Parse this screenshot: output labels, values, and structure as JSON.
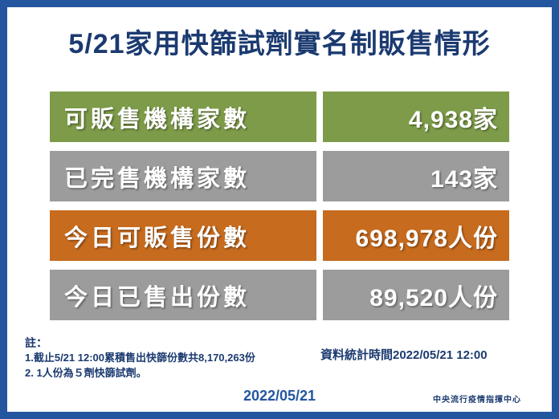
{
  "title": "5/21家用快篩試劑實名制販售情形",
  "chart_data": {
    "type": "table",
    "title": "5/21家用快篩試劑實名制販售情形",
    "rows": [
      {
        "label": "可販售機構家數",
        "value": "4,938家",
        "color": "#7d9b49"
      },
      {
        "label": "已完售機構家數",
        "value": "143家",
        "color": "#9c9c9c"
      },
      {
        "label": "今日可販售份數",
        "value": "698,978人份",
        "color": "#c76b1e"
      },
      {
        "label": "今日已售出份數",
        "value": "89,520人份",
        "color": "#9c9c9c"
      }
    ]
  },
  "notes": {
    "heading": "註：",
    "lines": [
      "1.截止5/21 12:00累積售出快篩份數共8,170,263份",
      "2. 1人份為５劑快篩試劑。"
    ]
  },
  "footer": {
    "stat_time": "資料統計時間2022/05/21 12:00",
    "date": "2022/05/21",
    "org": "中央流行疫情指揮中心"
  },
  "colors": {
    "frame_blue": "#2456a0",
    "title_text": "#1b3a70",
    "row_green": "#7d9b49",
    "row_gray": "#9c9c9c",
    "row_orange": "#c76b1e"
  }
}
